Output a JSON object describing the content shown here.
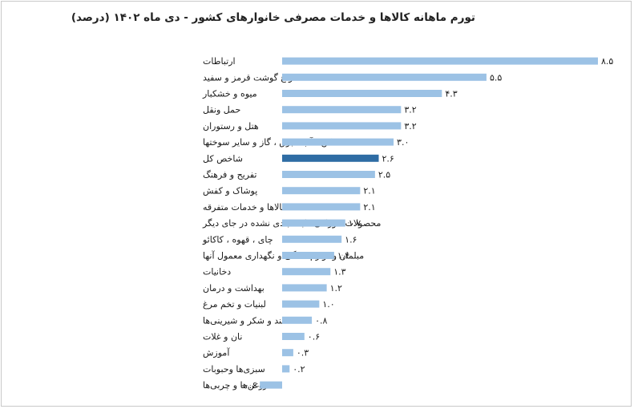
{
  "chart_data": {
    "type": "bar",
    "orientation": "horizontal",
    "title": "تورم ماهانه کالاها و خدمات مصرفی خانوارهای کشور - دی ماه ۱۴۰۲ (درصد)",
    "categories": [
      "ارتباطات",
      "انواع گوشت قرمز و سفید",
      "میوه و خشکبار",
      "حمل ونقل",
      "هتل و رستوران",
      "مسکن ، آب ، برق ، گاز و سایر سوختها",
      "شاخص کل",
      "تفریح و فرهنگ",
      "پوشاک و کفش",
      "کالاها و خدمات متفرقه",
      "محصولات خوراکی طبقه بندی نشده در جای دیگر",
      "چای ، قهوه ، کاکائو",
      "مبلمان و لوازم خانگی و نگهداری معمول آنها",
      "دخانیات",
      "بهداشت و درمان",
      "لبنیات و تخم مرغ",
      "قند و شکر و شیرینی‌ها",
      "نان و غلات",
      "آموزش",
      "سبزی‌ها وحبوبات",
      "روغن‌ها و چربی‌ها"
    ],
    "values": [
      8.5,
      5.5,
      4.3,
      3.2,
      3.2,
      3.0,
      2.6,
      2.5,
      2.1,
      2.1,
      1.7,
      1.6,
      1.4,
      1.3,
      1.2,
      1.0,
      0.8,
      0.6,
      0.3,
      0.2,
      -0.6
    ],
    "value_labels": [
      "۸.۵",
      "۵.۵",
      "۴.۳",
      "۳.۲",
      "۳.۲",
      "۳.۰",
      "۲.۶",
      "۲.۵",
      "۲.۱",
      "۲.۱",
      "۱.۷",
      "۱.۶",
      "۱.۴",
      "۱.۳",
      "۱.۲",
      "۱.۰",
      "۰.۸",
      "۰.۶",
      "۰.۳",
      "۰.۲",
      "-۰.۶"
    ],
    "highlight_category": "شاخص کل",
    "colors": {
      "bar": "#9cc2e5",
      "highlight": "#2e6ca4"
    },
    "xlim": [
      -0.6,
      8.5
    ],
    "grid": false,
    "legend": "none"
  }
}
